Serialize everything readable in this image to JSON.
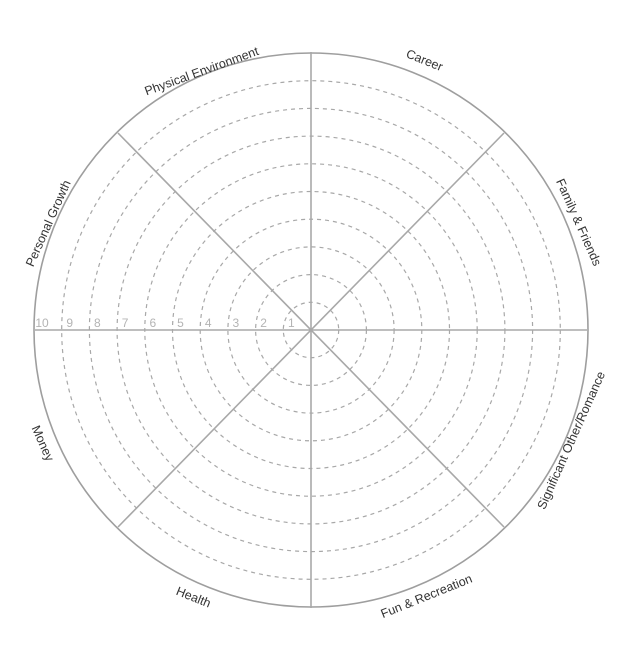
{
  "categories": [
    "Career",
    "Family & Friends",
    "Significant Other/Romance",
    "Fun & Recreation",
    "Health",
    "Money",
    "Personal Growth",
    "Physical Environment"
  ],
  "scale": {
    "min": 1,
    "max": 10,
    "labels": [
      "1",
      "2",
      "3",
      "4",
      "5",
      "6",
      "7",
      "8",
      "9",
      "10"
    ]
  },
  "colors": {
    "outline": "#9e9e9e",
    "rings": "#a8a8a8",
    "labels": "#333333",
    "scale": "#b4b4b4"
  }
}
